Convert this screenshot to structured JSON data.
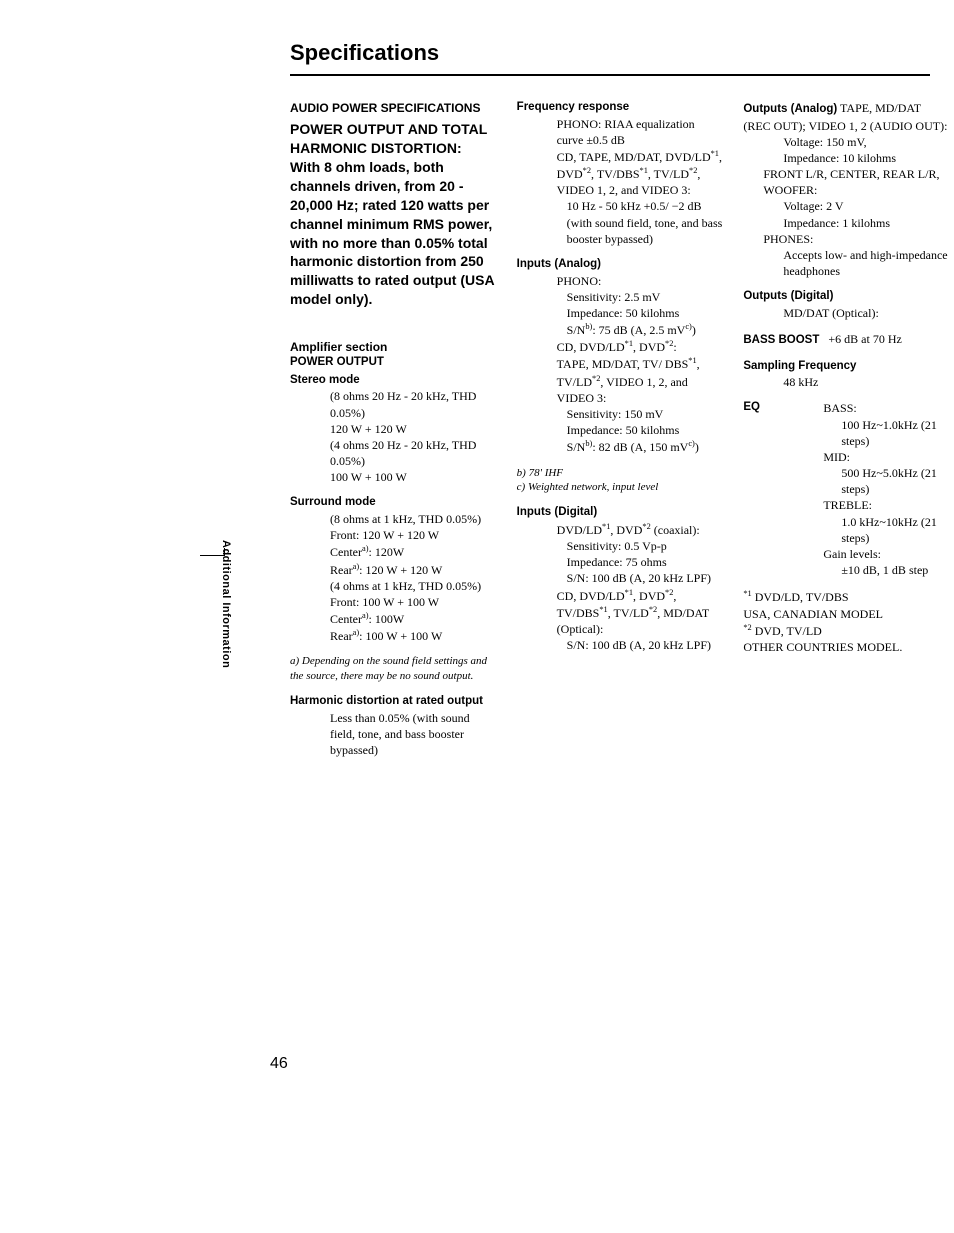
{
  "page": {
    "title": "Specifications",
    "side_label": "Additional Information",
    "page_number": "46"
  },
  "col1": {
    "audio_power_hdr": "AUDIO POWER SPECIFICATIONS",
    "power_output_hdr": "POWER OUTPUT AND TOTAL HARMONIC DISTORTION:",
    "power_output_body": "With 8 ohm loads, both channels driven, from 20 - 20,000 Hz; rated 120 watts per channel minimum RMS power, with no more than 0.05% total harmonic distortion from 250 milliwatts to rated output (USA model only).",
    "amp_section_hdr": "Amplifier section",
    "power_output_sub": "POWER OUTPUT",
    "stereo_label": "Stereo mode",
    "stereo_1": "(8 ohms 20 Hz - 20 kHz, THD 0.05%)",
    "stereo_2": "120 W + 120 W",
    "stereo_3": "(4 ohms 20 Hz - 20 kHz, THD 0.05%)",
    "stereo_4": "100 W + 100 W",
    "surround_label": "Surround mode",
    "surround_1": "(8 ohms at 1 kHz, THD 0.05%)",
    "surround_2": "Front: 120 W + 120 W",
    "surround_3_lbl": "Center",
    "surround_3_val": ": 120W",
    "surround_4_lbl": "Rear",
    "surround_4_val": ": 120 W + 120 W",
    "surround_5": "(4 ohms at 1 kHz, THD 0.05%)",
    "surround_6": "Front: 100 W + 100 W",
    "surround_7_lbl": "Center",
    "surround_7_val": ": 100W",
    "surround_8_lbl": "Rear",
    "surround_8_val": ": 100 W + 100 W",
    "note_a": "a) Depending on the sound field settings and the source, there may be no sound output.",
    "harmonic_hdr": "Harmonic distortion at rated output",
    "harmonic_body": "Less than 0.05% (with sound field, tone, and bass booster bypassed)"
  },
  "col2": {
    "freq_hdr": "Frequency response",
    "freq_1": "PHONO: RIAA equalization curve ±0.5 dB",
    "freq_2a": "CD, TAPE, MD/DAT, DVD/LD",
    "freq_2b": ", DVD",
    "freq_2c": ", TV/DBS",
    "freq_2d": ", TV/LD",
    "freq_2e": ", VIDEO 1, 2, and VIDEO 3:",
    "freq_3": "10 Hz - 50 kHz +0.5/ −2 dB (with sound field, tone, and bass booster bypassed)",
    "inputs_analog_hdr": "Inputs (Analog)",
    "ia_phono": "PHONO:",
    "ia_phono_1": "Sensitivity: 2.5 mV",
    "ia_phono_2": "Impedance: 50 kilohms",
    "ia_phono_3a": "S/N",
    "ia_phono_3b": ": 75 dB (A, 2.5 mV",
    "ia_phono_3c": ")",
    "ia_cd_lbl_a": "CD, DVD/LD",
    "ia_cd_lbl_b": ", DVD",
    "ia_cd_lbl_c": ":",
    "ia_tape_a": "TAPE, MD/DAT, TV/ DBS",
    "ia_tape_b": ", TV/LD",
    "ia_tape_c": ", VIDEO 1, 2, and VIDEO 3:",
    "ia_tape_1": "Sensitivity: 150 mV",
    "ia_tape_2": "Impedance: 50 kilohms",
    "ia_tape_3a": "S/N",
    "ia_tape_3b": ": 82 dB (A, 150 mV",
    "ia_tape_3c": ")",
    "note_b": "b) 78' IHF",
    "note_c": "c) Weighted network, input level",
    "inputs_digital_hdr": "Inputs (Digital)",
    "id_1a": "DVD/LD",
    "id_1b": ", DVD",
    "id_1c": " (coaxial):",
    "id_2": "Sensitivity: 0.5 Vp-p",
    "id_3": "Impedance: 75 ohms",
    "id_4": "S/N: 100 dB (A, 20 kHz LPF)",
    "id_5a": "CD, DVD/LD",
    "id_5b": ", DVD",
    "id_5c": ", TV/DBS",
    "id_5d": ", TV/LD",
    "id_5e": ", MD/DAT (Optical):",
    "id_6": "S/N: 100 dB (A, 20 kHz LPF)"
  },
  "col3": {
    "outputs_analog_hdr": "Outputs (Analog)",
    "oa_1": "TAPE, MD/DAT (REC OUT); VIDEO 1, 2 (AUDIO OUT):",
    "oa_2": "Voltage: 150 mV,",
    "oa_3": "Impedance: 10 kilohms",
    "oa_4": "FRONT L/R, CENTER, REAR L/R, WOOFER:",
    "oa_5": "Voltage: 2 V",
    "oa_6": "Impedance: 1 kilohms",
    "oa_7": "PHONES:",
    "oa_8": "Accepts low- and high-impedance headphones",
    "outputs_digital_hdr": "Outputs (Digital)",
    "od_1": "MD/DAT (Optical):",
    "bass_lbl": "BASS BOOST",
    "bass_val": "+6 dB at 70 Hz",
    "samp_hdr": "Sampling Frequency",
    "samp_val": "48 kHz",
    "eq_hdr": "EQ",
    "eq_bass": "BASS:",
    "eq_bass_v": "100 Hz~1.0kHz (21 steps)",
    "eq_mid": "MID:",
    "eq_mid_v": "500 Hz~5.0kHz (21 steps)",
    "eq_treble": "TREBLE:",
    "eq_treble_v": "1.0 kHz~10kHz (21 steps)",
    "eq_gain": "Gain levels:",
    "eq_gain_v": "±10 dB, 1 dB step",
    "fn1a": " DVD/LD, TV/DBS",
    "fn1b": "USA, CANADIAN MODEL",
    "fn2a": " DVD, TV/LD",
    "fn2b": "OTHER COUNTRIES MODEL."
  }
}
